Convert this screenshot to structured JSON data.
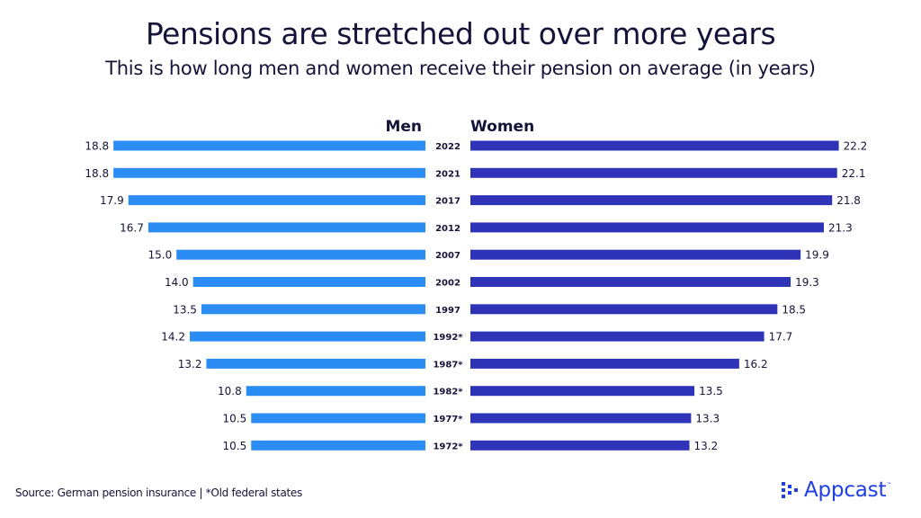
{
  "header": {
    "title": "Pensions are stretched out over more years",
    "subtitle": "This is how long men and women receive their pension on average (in years)"
  },
  "footer": {
    "source": "Source: German pension insurance | *Old federal states",
    "logo_text": "Appcast",
    "logo_tm": "™"
  },
  "colors": {
    "men": "#2b8cf3",
    "women": "#2f33b8",
    "text": "#14143a",
    "brand": "#1e3eea"
  },
  "chart_data": {
    "type": "bar",
    "orientation": "horizontal-butterfly",
    "categories": [
      "2022",
      "2021",
      "2017",
      "2012",
      "2007",
      "2002",
      "1997",
      "1992*",
      "1987*",
      "1982*",
      "1977*",
      "1972*"
    ],
    "series": [
      {
        "name": "Men",
        "values": [
          18.8,
          18.8,
          17.9,
          16.7,
          15.0,
          14.0,
          13.5,
          14.2,
          13.2,
          10.8,
          10.5,
          10.5
        ],
        "labels": [
          "18.8",
          "18.8",
          "17.9",
          "16.7",
          "15.0",
          "14.0",
          "13.5",
          "14.2",
          "13.2",
          "10.8",
          "10.5",
          "10.5"
        ]
      },
      {
        "name": "Women",
        "values": [
          22.2,
          22.1,
          21.8,
          21.3,
          19.9,
          19.3,
          18.5,
          17.7,
          16.2,
          13.5,
          13.3,
          13.2
        ],
        "labels": [
          "22.2",
          "22.1",
          "21.8",
          "21.3",
          "19.9",
          "19.3",
          "18.5",
          "17.7",
          "16.2",
          "13.5",
          "13.3",
          "13.2"
        ]
      }
    ],
    "xlim": [
      0,
      22.5
    ],
    "grid": false,
    "legend": "top-center"
  }
}
